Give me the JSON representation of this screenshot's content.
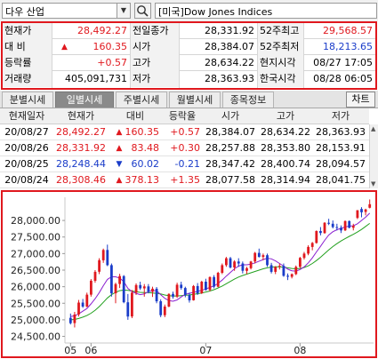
{
  "search": {
    "market_select": "다우 산업",
    "index_name": "[미국]Dow Jones Indices"
  },
  "quote": {
    "rows": [
      {
        "l1": "현재가",
        "v1": "28,492.27",
        "l2": "전일종가",
        "v2": "28,331.92",
        "l3": "52주최고",
        "v3": "29,568.57"
      },
      {
        "l1": "대  비",
        "v1": "160.35",
        "l2": "시가",
        "v2": "28,384.07",
        "l3": "52주최저",
        "v3": "18,213.65"
      },
      {
        "l1": "등락률",
        "v1": "+0.57",
        "l2": "고가",
        "v2": "28,634.22",
        "l3": "현지시각",
        "v3": "08/27 17:05"
      },
      {
        "l1": "거래량",
        "v1": "405,091,731",
        "l2": "저가",
        "v2": "28,363.93",
        "l3": "한국시각",
        "v3": "08/28 06:05"
      }
    ],
    "up_arrow": "▲"
  },
  "tabs": {
    "items": [
      "분별시세",
      "일별시세",
      "주별시세",
      "월별시세",
      "종목정보"
    ],
    "active": "일별시세",
    "chart_button": "차트"
  },
  "daily": {
    "headers": [
      "현재일자",
      "현재가",
      "대비",
      "등락율",
      "시가",
      "고가",
      "저가"
    ],
    "rows": [
      {
        "date": "20/08/27",
        "price": "28,492.27",
        "dir": "▲",
        "change": "160.35",
        "rate": "+0.57",
        "open": "28,384.07",
        "high": "28,634.22",
        "low": "28,363.93",
        "color": "red"
      },
      {
        "date": "20/08/26",
        "price": "28,331.92",
        "dir": "▲",
        "change": "83.48",
        "rate": "+0.30",
        "open": "28,257.88",
        "high": "28,353.80",
        "low": "28,153.91",
        "color": "red"
      },
      {
        "date": "20/08/25",
        "price": "28,248.44",
        "dir": "▼",
        "change": "60.02",
        "rate": "-0.21",
        "open": "28,347.42",
        "high": "28,400.74",
        "low": "28,094.57",
        "color": "blue"
      },
      {
        "date": "20/08/24",
        "price": "28,308.46",
        "dir": "▲",
        "change": "378.13",
        "rate": "+1.35",
        "open": "28,077.58",
        "high": "28,314.94",
        "low": "28,041.75",
        "color": "red"
      }
    ]
  },
  "colors": {
    "up": "#e0181e",
    "down": "#1a3cc9",
    "ma_short": "#8a1fd0",
    "ma_long": "#22a01e",
    "highlight_border": "#e0181e"
  },
  "chart_data": {
    "type": "candlestick",
    "ylim": [
      24300,
      28700
    ],
    "y_ticks": [
      "28,000.00",
      "27,500.00",
      "27,000.00",
      "26,500.00",
      "26,000.00",
      "25,500.00",
      "25,000.00",
      "24,500.00"
    ],
    "y_tick_values": [
      28000,
      27500,
      27000,
      26500,
      26000,
      25500,
      25000,
      24500
    ],
    "x_labels": [
      "05",
      "06",
      "07",
      "08"
    ],
    "x_label_index": [
      0,
      5,
      33,
      56
    ],
    "candles": [
      [
        25060,
        25190,
        24860,
        24900
      ],
      [
        24900,
        25240,
        24770,
        25160
      ],
      [
        25160,
        25600,
        25100,
        25520
      ],
      [
        25520,
        25630,
        25360,
        25400
      ],
      [
        25400,
        25820,
        25380,
        25760
      ],
      [
        25760,
        26230,
        25700,
        26180
      ],
      [
        26180,
        26500,
        26120,
        26450
      ],
      [
        26450,
        26860,
        26380,
        26800
      ],
      [
        26800,
        27150,
        26720,
        27110
      ],
      [
        27110,
        27270,
        26620,
        26650
      ],
      [
        26650,
        26700,
        25700,
        25800
      ],
      [
        25800,
        26120,
        25500,
        26080
      ],
      [
        26080,
        26390,
        25960,
        26320
      ],
      [
        26320,
        26350,
        25500,
        25530
      ],
      [
        25530,
        25780,
        25000,
        25100
      ],
      [
        25100,
        25900,
        25050,
        25820
      ],
      [
        25820,
        26100,
        25750,
        26050
      ],
      [
        26050,
        26150,
        25900,
        25950
      ],
      [
        25950,
        26080,
        25700,
        26010
      ],
      [
        26010,
        26080,
        25800,
        25850
      ],
      [
        25850,
        26000,
        25690,
        25940
      ],
      [
        25940,
        25990,
        25500,
        25560
      ],
      [
        25560,
        25620,
        25080,
        25140
      ],
      [
        25140,
        25460,
        25080,
        25400
      ],
      [
        25400,
        25800,
        25380,
        25780
      ],
      [
        25780,
        25850,
        25640,
        25700
      ],
      [
        25700,
        26120,
        25660,
        26060
      ],
      [
        26060,
        26150,
        25910,
        25960
      ],
      [
        25960,
        26000,
        25680,
        25750
      ],
      [
        25750,
        25820,
        25520,
        25590
      ],
      [
        25590,
        26050,
        25580,
        26020
      ],
      [
        26020,
        26110,
        25750,
        25800
      ],
      [
        25800,
        26180,
        25780,
        26150
      ],
      [
        26150,
        26240,
        25880,
        25900
      ],
      [
        25900,
        26310,
        25860,
        26290
      ],
      [
        26290,
        26350,
        25950,
        26000
      ],
      [
        26000,
        26450,
        25980,
        26420
      ],
      [
        26420,
        26700,
        26380,
        26650
      ],
      [
        26650,
        26900,
        26600,
        26860
      ],
      [
        26860,
        26900,
        26550,
        26580
      ],
      [
        26580,
        26800,
        26480,
        26760
      ],
      [
        26760,
        26860,
        26600,
        26700
      ],
      [
        26700,
        26760,
        26400,
        26480
      ],
      [
        26480,
        26600,
        26380,
        26560
      ],
      [
        26560,
        26780,
        26520,
        26760
      ],
      [
        26760,
        27050,
        26700,
        27020
      ],
      [
        27020,
        27150,
        26880,
        26900
      ],
      [
        26900,
        27000,
        26800,
        26950
      ],
      [
        26950,
        27000,
        26600,
        26650
      ],
      [
        26650,
        26720,
        26400,
        26450
      ],
      [
        26450,
        26620,
        26380,
        26600
      ],
      [
        26600,
        26700,
        26520,
        26630
      ],
      [
        26630,
        26700,
        26300,
        26330
      ],
      [
        26330,
        26400,
        26200,
        26300
      ],
      [
        26300,
        26400,
        26250,
        26380
      ],
      [
        26380,
        26640,
        26350,
        26600
      ],
      [
        26600,
        26900,
        26560,
        26870
      ],
      [
        26870,
        27050,
        26820,
        27000
      ],
      [
        27000,
        27250,
        26950,
        27200
      ],
      [
        27200,
        27350,
        27100,
        27320
      ],
      [
        27320,
        27700,
        27300,
        27680
      ],
      [
        27680,
        27800,
        27550,
        27620
      ],
      [
        27620,
        27950,
        27600,
        27930
      ],
      [
        27930,
        28050,
        27860,
        27900
      ],
      [
        27900,
        28000,
        27760,
        27800
      ],
      [
        27800,
        27900,
        27700,
        27780
      ],
      [
        27780,
        27850,
        27620,
        27700
      ],
      [
        27700,
        28000,
        27680,
        27980
      ],
      [
        27980,
        28000,
        27760,
        27780
      ],
      [
        27780,
        27900,
        27700,
        27840
      ],
      [
        28077,
        28315,
        28042,
        28308
      ],
      [
        28347,
        28401,
        28095,
        28248
      ],
      [
        28258,
        28354,
        28154,
        28332
      ],
      [
        28384,
        28634,
        28364,
        28492
      ]
    ],
    "ma_short": [
      25100,
      25120,
      25180,
      25260,
      25340,
      25480,
      25640,
      25820,
      26030,
      26220,
      26300,
      26300,
      26260,
      26150,
      25950,
      25850,
      25800,
      25760,
      25780,
      25850,
      25880,
      25880,
      25760,
      25650,
      25580,
      25560,
      25600,
      25690,
      25770,
      25800,
      25830,
      25860,
      25890,
      25930,
      25980,
      26020,
      26100,
      26200,
      26320,
      26430,
      26540,
      26620,
      26660,
      26660,
      26680,
      26720,
      26770,
      26820,
      26860,
      26840,
      26780,
      26700,
      26620,
      26530,
      26480,
      26470,
      26520,
      26600,
      26720,
      26870,
      27050,
      27220,
      27400,
      27560,
      27660,
      27720,
      27760,
      27800,
      27830,
      27840,
      27900,
      28000,
      28100,
      28220
    ],
    "ma_long": [
      25000,
      25010,
      25040,
      25080,
      25130,
      25200,
      25290,
      25400,
      25530,
      25660,
      25760,
      25830,
      25880,
      25900,
      25890,
      25870,
      25850,
      25830,
      25820,
      25820,
      25810,
      25800,
      25780,
      25750,
      25730,
      25720,
      25720,
      25730,
      25740,
      25750,
      25770,
      25790,
      25810,
      25840,
      25870,
      25910,
      25960,
      26020,
      26090,
      26160,
      26230,
      26290,
      26340,
      26380,
      26420,
      26460,
      26500,
      26540,
      26570,
      26590,
      26600,
      26600,
      26590,
      26570,
      26550,
      26540,
      26550,
      26580,
      26630,
      26700,
      26790,
      26890,
      27000,
      27110,
      27210,
      27300,
      27380,
      27450,
      27520,
      27580,
      27650,
      27730,
      27820,
      27910
    ]
  }
}
